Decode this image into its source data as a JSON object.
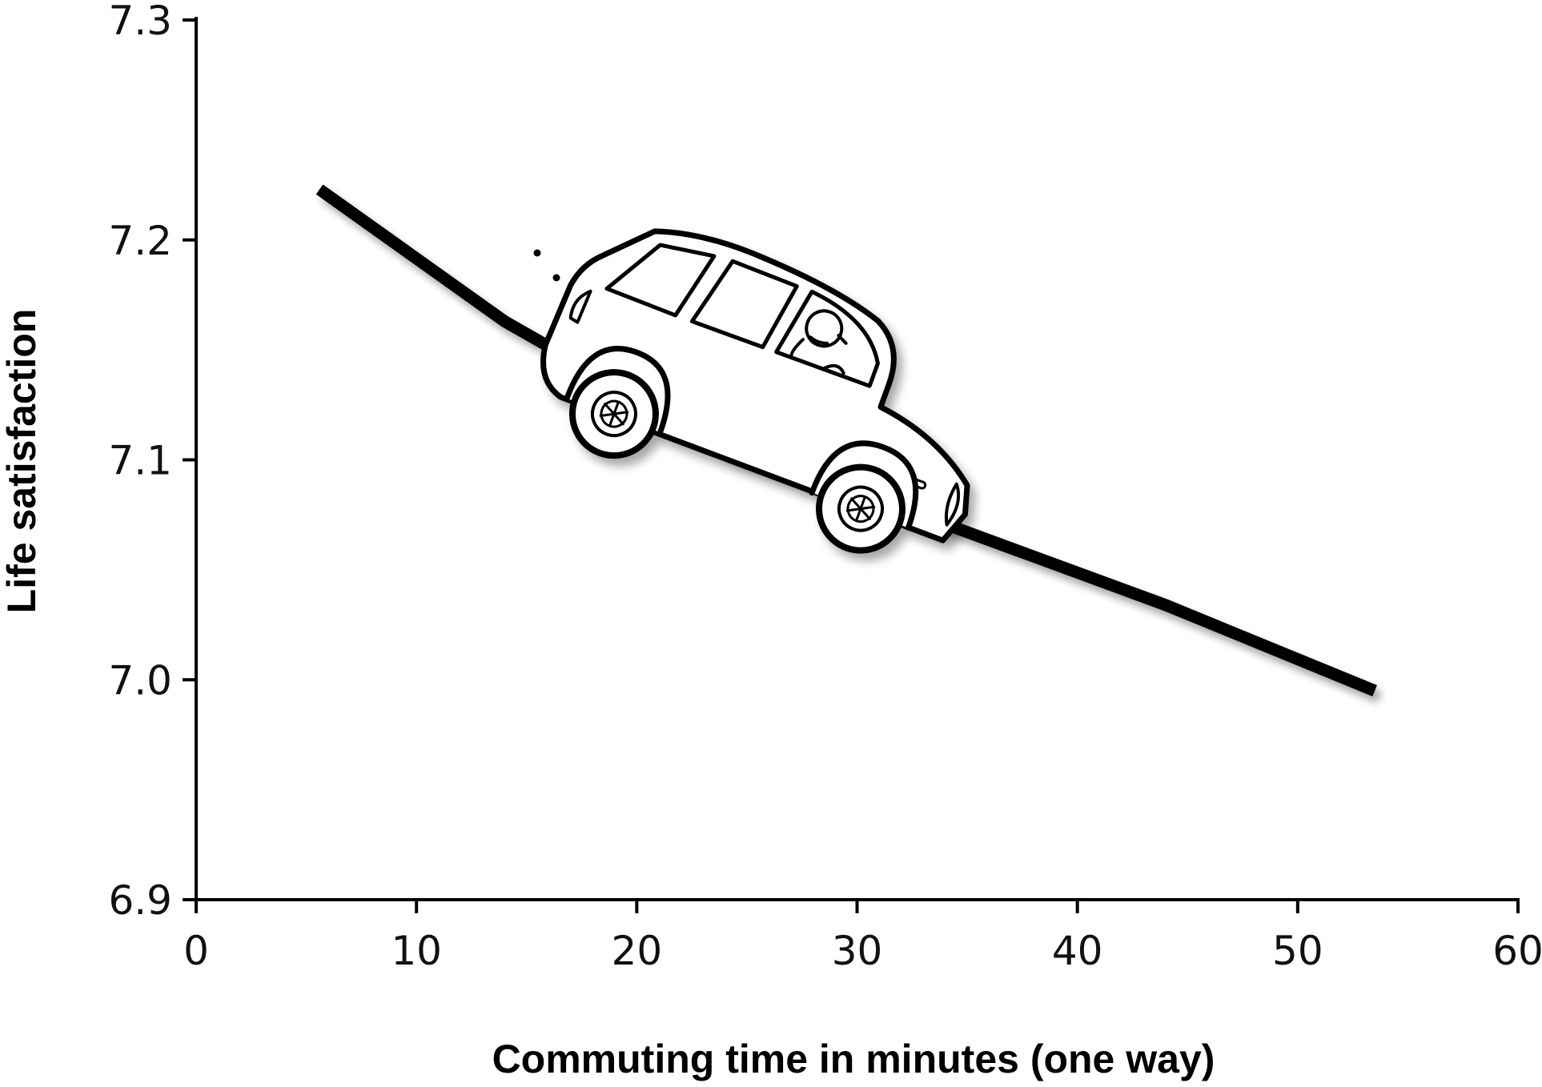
{
  "chart_data": {
    "type": "line",
    "xlabel": "Commuting time in minutes (one way)",
    "ylabel": "Life satisfaction",
    "xlim": [
      0,
      60
    ],
    "ylim": [
      6.9,
      7.3
    ],
    "x_ticks": [
      "0",
      "10",
      "20",
      "30",
      "40",
      "50",
      "60"
    ],
    "y_ticks": [
      "6.9",
      "7.0",
      "7.1",
      "7.2",
      "7.3"
    ],
    "grid": false,
    "series": [
      {
        "x": [
          5.6,
          14.0,
          24.5,
          34.5,
          44.0,
          53.5
        ],
        "y": [
          7.223,
          7.163,
          7.103,
          7.069,
          7.034,
          6.995
        ]
      }
    ],
    "line_color": "#000000"
  }
}
